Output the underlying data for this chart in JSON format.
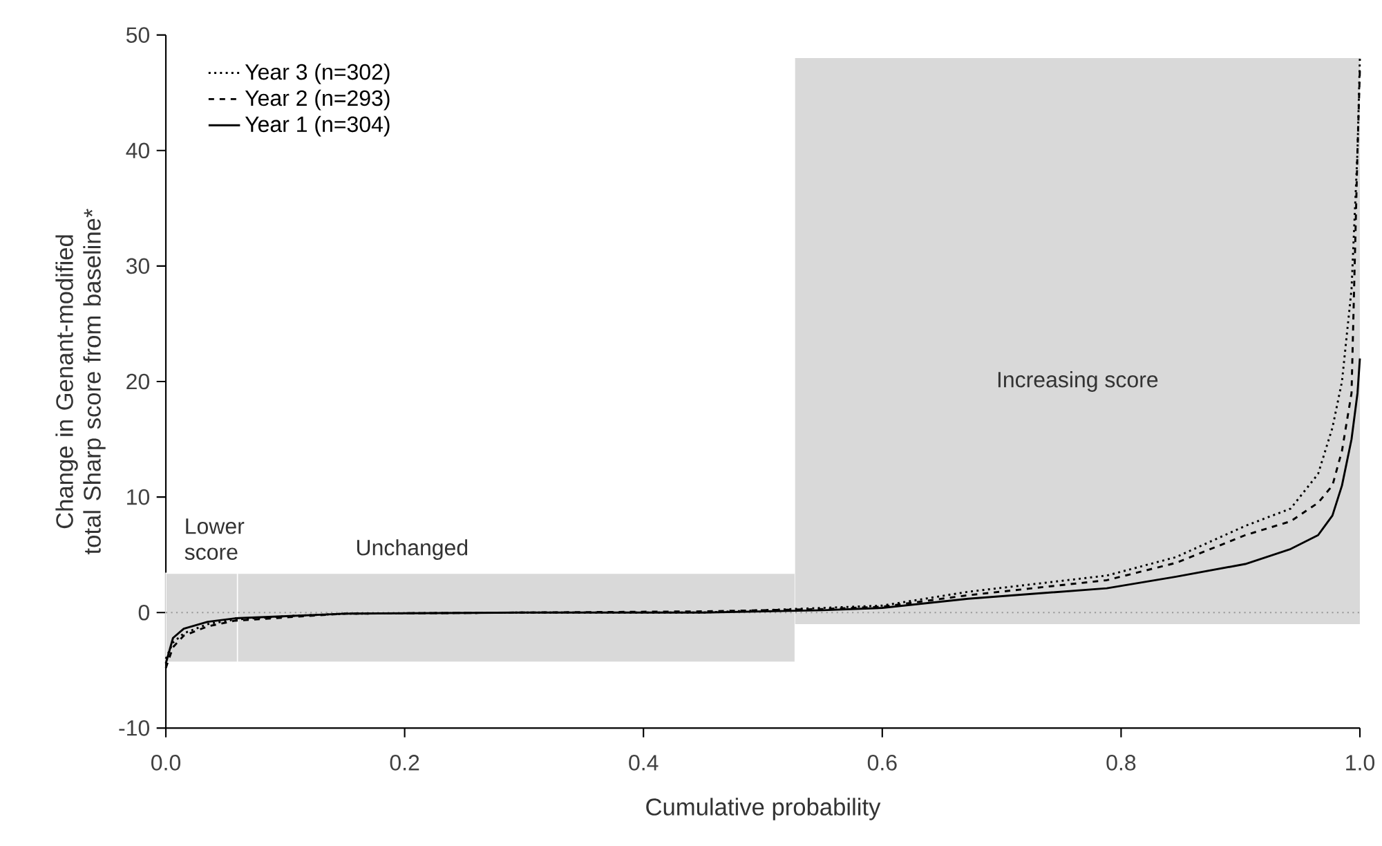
{
  "chart_data": {
    "type": "line",
    "xlabel": "Cumulative probability",
    "ylabel": "Change in Genant-modified total Sharp score from baseline*",
    "xlim": [
      0,
      1
    ],
    "ylim": [
      -10,
      50
    ],
    "xticks": [
      {
        "value": 0,
        "label": "0.0"
      },
      {
        "value": 0.2,
        "label": "0.2"
      },
      {
        "value": 0.4,
        "label": "0.4"
      },
      {
        "value": 0.6,
        "label": "0.6"
      },
      {
        "value": 0.8,
        "label": "0.8"
      },
      {
        "value": 1,
        "label": "1.0"
      }
    ],
    "yticks": [
      -10,
      0,
      10,
      20,
      30,
      40,
      50
    ],
    "legend": "top left",
    "grid": false,
    "x": [
      0,
      0.006,
      0.015,
      0.035,
      0.058,
      0.104,
      0.15,
      0.3,
      0.45,
      0.55,
      0.6,
      0.672,
      0.788,
      0.846,
      0.904,
      0.942,
      0.965,
      0.977,
      0.985,
      0.993,
      0.998,
      1.0
    ],
    "series": [
      {
        "name": "Year 3  (n=302)",
        "color": "#000000",
        "line_style": "dotted",
        "values": [
          -4,
          -2.6,
          -1.8,
          -1,
          -0.6,
          -0.3,
          -0.1,
          0,
          0,
          0.4,
          0.6,
          1.8,
          3.2,
          4.8,
          7.5,
          9,
          12,
          16,
          20,
          28,
          40,
          48
        ]
      },
      {
        "name": "Year 2  (n=293)",
        "color": "#000000",
        "line_style": "dashed",
        "values": [
          -4.8,
          -3,
          -2,
          -1.2,
          -0.7,
          -0.4,
          -0.1,
          0,
          0.1,
          0.3,
          0.5,
          1.5,
          2.8,
          4.3,
          6.7,
          7.9,
          9.5,
          11,
          14,
          19,
          40,
          47
        ]
      },
      {
        "name": "Year 1  (n=304)",
        "color": "#000000",
        "line_style": "solid",
        "values": [
          -4.4,
          -2.2,
          -1.4,
          -0.8,
          -0.5,
          -0.3,
          -0.1,
          0,
          0,
          0.2,
          0.4,
          1.2,
          2.1,
          3.1,
          4.2,
          5.5,
          6.7,
          8.4,
          11,
          15,
          19,
          22
        ]
      }
    ],
    "bands": [
      {
        "axis": "x",
        "from": 0,
        "to": 0.06,
        "label": "Lower score",
        "color": "#d9d9d9"
      },
      {
        "axis": "x",
        "from": 0.06,
        "to": 0.527,
        "label": "Unchanged",
        "color": "#d9d9d9"
      },
      {
        "axis": "x",
        "from": 0.527,
        "to": 1.0,
        "label": "Increasing score",
        "color": "#d9d9d9"
      }
    ],
    "ref_lines": [
      {
        "axis": "y",
        "value": 0,
        "color": "#999999",
        "line_style": "dotted"
      }
    ]
  }
}
